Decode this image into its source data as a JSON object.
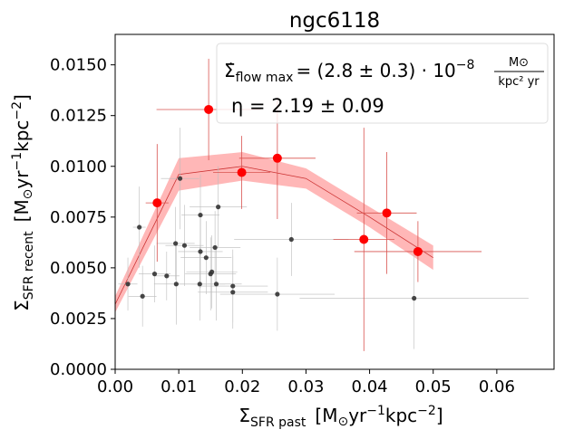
{
  "chart_data": {
    "type": "scatter",
    "title": "ngc6118",
    "xlabel": {
      "main": "Σ",
      "sub": "SFR past",
      "unit_pre": "[M",
      "unit_sun": "⊙",
      "unit_yr": "yr",
      "unit_exp1": "−1",
      "unit_kpc": "kpc",
      "unit_exp2": "−2",
      "unit_post": "]"
    },
    "ylabel": {
      "main": "Σ",
      "sub": "SFR recent",
      "unit_pre": "[M",
      "unit_sun": "⊙",
      "unit_yr": "yr",
      "unit_exp1": "−1",
      "unit_kpc": "kpc",
      "unit_exp2": "−2",
      "unit_post": "]"
    },
    "xlim": [
      0.0,
      0.069
    ],
    "ylim": [
      0.0,
      0.0165
    ],
    "xticks": [
      0.0,
      0.01,
      0.02,
      0.03,
      0.04,
      0.05,
      0.06
    ],
    "xtick_labels": [
      "0.00",
      "0.01",
      "0.02",
      "0.03",
      "0.04",
      "0.05",
      "0.06"
    ],
    "yticks": [
      0.0,
      0.0025,
      0.005,
      0.0075,
      0.01,
      0.0125,
      0.015
    ],
    "ytick_labels": [
      "0.0000",
      "0.0025",
      "0.0050",
      "0.0075",
      "0.0100",
      "0.0125",
      "0.0150"
    ],
    "legend": {
      "line1_prefix": "Σ̇",
      "line1_sub": "flow max",
      "line1_value": "= (2.8 ± 0.3) · 10",
      "line1_exp": "−8",
      "line1_frac_num": "M⊙",
      "line1_frac_den": "kpc² yr",
      "line2": "η = 2.19 ± 0.09",
      "placement": "top-right"
    },
    "series": [
      {
        "name": "red_points",
        "color": "#ff0000",
        "points": [
          {
            "x": 0.0066,
            "y": 0.0082,
            "xerr": 0.0018,
            "yerr": 0.0029
          },
          {
            "x": 0.0147,
            "y": 0.0128,
            "xerr": 0.0082,
            "yerr": 0.0025
          },
          {
            "x": 0.0199,
            "y": 0.0097,
            "xerr": 0.0045,
            "yerr": 0.0018
          },
          {
            "x": 0.0255,
            "y": 0.0104,
            "xerr": 0.006,
            "yerr": 0.003
          },
          {
            "x": 0.0391,
            "y": 0.0064,
            "xerr": 0.0048,
            "yerr": 0.0055
          },
          {
            "x": 0.0427,
            "y": 0.0077,
            "xerr": 0.0047,
            "yerr": 0.003
          },
          {
            "x": 0.0476,
            "y": 0.0058,
            "xerr": 0.01,
            "yerr": 0.0015
          }
        ]
      },
      {
        "name": "black_points",
        "color": "#333333",
        "points": [
          {
            "x": 0.002,
            "y": 0.0042,
            "xerr": 0.0015,
            "yerr": 0.0013
          },
          {
            "x": 0.0038,
            "y": 0.007,
            "xerr": 0.001,
            "yerr": 0.002
          },
          {
            "x": 0.0043,
            "y": 0.0036,
            "xerr": 0.0022,
            "yerr": 0.0015
          },
          {
            "x": 0.0062,
            "y": 0.0047,
            "xerr": 0.0025,
            "yerr": 0.0014
          },
          {
            "x": 0.0081,
            "y": 0.0046,
            "xerr": 0.002,
            "yerr": 0.0012
          },
          {
            "x": 0.0095,
            "y": 0.0062,
            "xerr": 0.003,
            "yerr": 0.0018
          },
          {
            "x": 0.0096,
            "y": 0.0042,
            "xerr": 0.0035,
            "yerr": 0.002
          },
          {
            "x": 0.0102,
            "y": 0.0094,
            "xerr": 0.003,
            "yerr": 0.0025
          },
          {
            "x": 0.0109,
            "y": 0.0061,
            "xerr": 0.003,
            "yerr": 0.002
          },
          {
            "x": 0.0134,
            "y": 0.0076,
            "xerr": 0.003,
            "yerr": 0.002
          },
          {
            "x": 0.0134,
            "y": 0.0058,
            "xerr": 0.0035,
            "yerr": 0.0018
          },
          {
            "x": 0.0133,
            "y": 0.0042,
            "xerr": 0.004,
            "yerr": 0.0018
          },
          {
            "x": 0.0143,
            "y": 0.0055,
            "xerr": 0.004,
            "yerr": 0.0018
          },
          {
            "x": 0.015,
            "y": 0.0047,
            "xerr": 0.004,
            "yerr": 0.0018
          },
          {
            "x": 0.0152,
            "y": 0.0048,
            "xerr": 0.004,
            "yerr": 0.0018
          },
          {
            "x": 0.0157,
            "y": 0.006,
            "xerr": 0.004,
            "yerr": 0.0018
          },
          {
            "x": 0.0162,
            "y": 0.008,
            "xerr": 0.0045,
            "yerr": 0.002
          },
          {
            "x": 0.0159,
            "y": 0.0042,
            "xerr": 0.004,
            "yerr": 0.0018
          },
          {
            "x": 0.0185,
            "y": 0.0041,
            "xerr": 0.0055,
            "yerr": 0.0018
          },
          {
            "x": 0.0185,
            "y": 0.0038,
            "xerr": 0.0055,
            "yerr": 0.0018
          },
          {
            "x": 0.0255,
            "y": 0.0037,
            "xerr": 0.009,
            "yerr": 0.0018
          },
          {
            "x": 0.0277,
            "y": 0.0064,
            "xerr": 0.009,
            "yerr": 0.0018
          },
          {
            "x": 0.047,
            "y": 0.0035,
            "xerr": 0.018,
            "yerr": 0.0025
          }
        ]
      }
    ],
    "fit_line": {
      "color": "#ff0000",
      "x": [
        0.0,
        0.01,
        0.02,
        0.03,
        0.04,
        0.05
      ],
      "y": [
        0.0032,
        0.0096,
        0.01,
        0.0094,
        0.0075,
        0.0055
      ],
      "band_halfwidth": [
        0.0004,
        0.0008,
        0.0007,
        0.0005,
        0.0005,
        0.0006
      ]
    }
  }
}
